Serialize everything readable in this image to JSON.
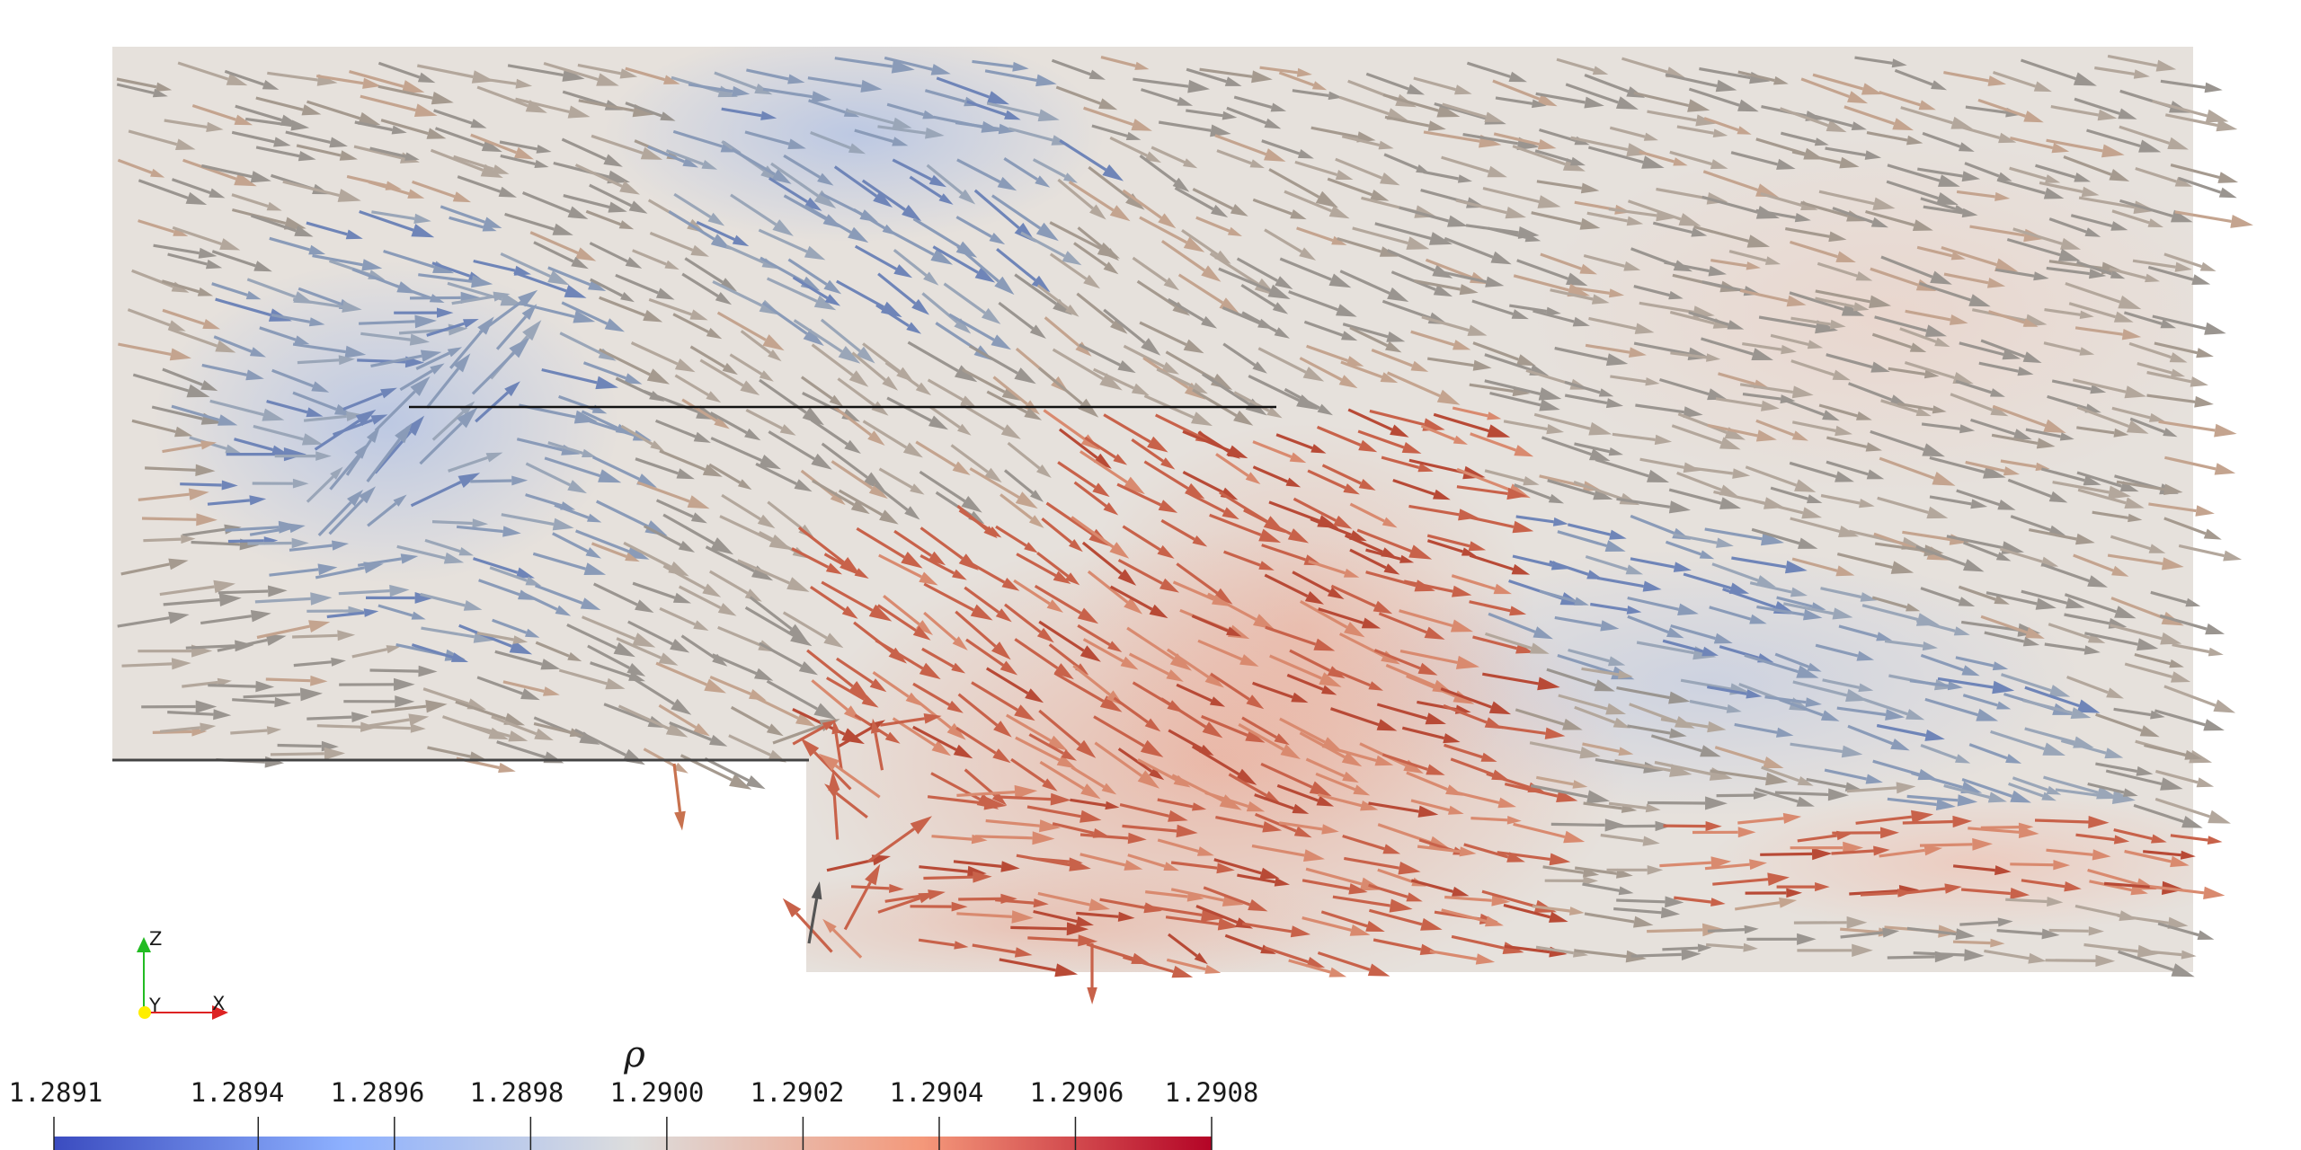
{
  "colorbar": {
    "title": "ρ",
    "min": 1.2891,
    "max": 1.2908,
    "ticks": [
      {
        "value": 1.2891,
        "label": "1.2891"
      },
      {
        "value": 1.2894,
        "label": "1.2894"
      },
      {
        "value": 1.2896,
        "label": "1.2896"
      },
      {
        "value": 1.2898,
        "label": "1.2898"
      },
      {
        "value": 1.29,
        "label": "1.2900"
      },
      {
        "value": 1.2902,
        "label": "1.2902"
      },
      {
        "value": 1.2904,
        "label": "1.2904"
      },
      {
        "value": 1.2906,
        "label": "1.2906"
      },
      {
        "value": 1.2908,
        "label": "1.2908"
      }
    ],
    "colors": [
      "#3b4cc0",
      "#8db0fe",
      "#dddddd",
      "#f4987a",
      "#b40426"
    ]
  },
  "orientation_axes": {
    "z_label": "Z",
    "y_label": "Y",
    "x_label": "X",
    "z_color": "#22bb22",
    "y_color": "#ffee00",
    "x_color": "#dd2222"
  },
  "scene": {
    "background": "#ffffff",
    "glyph": "arrow",
    "colored_by": "ρ"
  }
}
